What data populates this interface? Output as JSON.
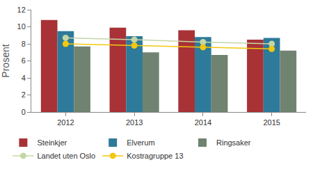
{
  "chart_data": {
    "type": "bar",
    "y_label": "Prosent",
    "categories": [
      "2012",
      "2013",
      "2014",
      "2015"
    ],
    "series": [
      {
        "name": "Steinkjer",
        "color": "#a83236",
        "type": "bar",
        "values": [
          10.8,
          9.9,
          9.6,
          8.5
        ]
      },
      {
        "name": "Elverum",
        "color": "#2e7a9a",
        "type": "bar",
        "values": [
          9.5,
          8.9,
          8.8,
          8.7
        ]
      },
      {
        "name": "Ringsaker",
        "color": "#6f8370",
        "type": "bar",
        "values": [
          7.7,
          7.0,
          6.7,
          7.2
        ]
      },
      {
        "name": "Landet uten Oslo",
        "color": "#c5d6a6",
        "type": "line",
        "marker": "circle",
        "values": [
          8.7,
          8.5,
          8.2,
          8.0
        ]
      },
      {
        "name": "Kostragruppe 13",
        "color": "#f2c80f",
        "type": "line",
        "marker": "circle",
        "values": [
          8.0,
          7.8,
          7.6,
          7.4
        ]
      }
    ],
    "ylim": [
      0,
      12
    ],
    "yticks": [
      0,
      2,
      4,
      6,
      8,
      10,
      12
    ],
    "grid": false,
    "legend": "bottom"
  }
}
